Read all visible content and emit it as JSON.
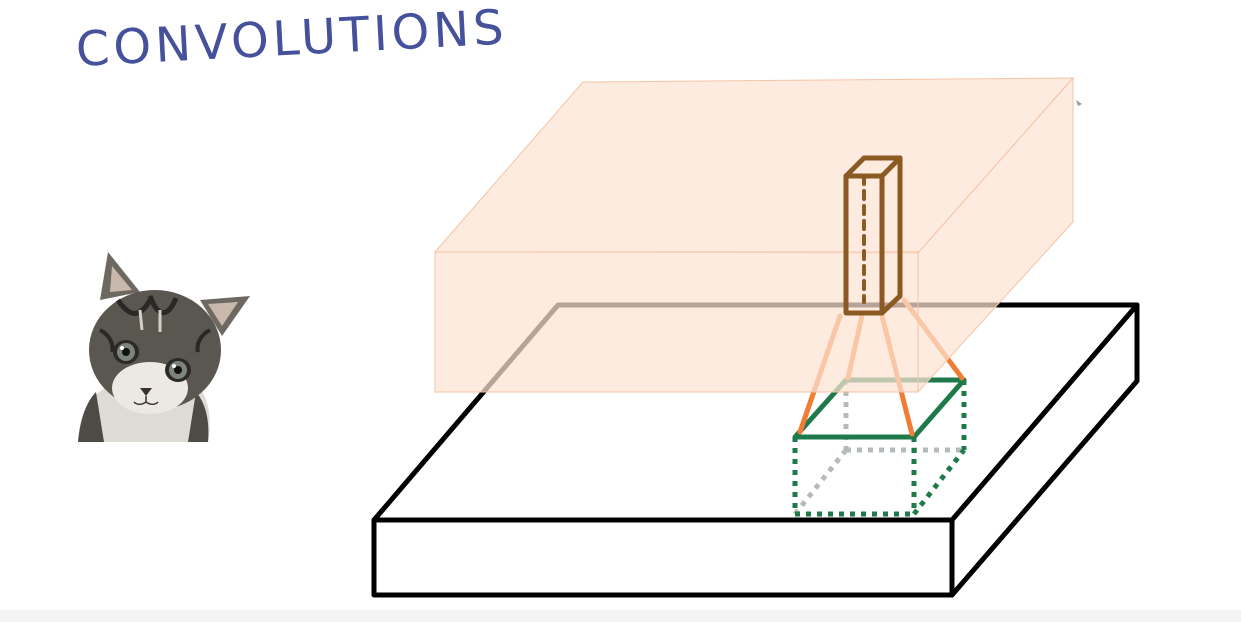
{
  "title": "CONVOLUTIONS",
  "colors": {
    "title": "#45519b",
    "input_volume_stroke": "#000000",
    "output_volume_fill": "#fde3d2",
    "output_column_stroke": "#8b5a23",
    "projection_lines": "#f07d33",
    "patch_top": "#1e7a4a",
    "patch_dotted": "#1e7a4a",
    "patch_hidden_dotted": "#b5bcb8"
  },
  "icons": {
    "kitten": "kitten-image"
  }
}
